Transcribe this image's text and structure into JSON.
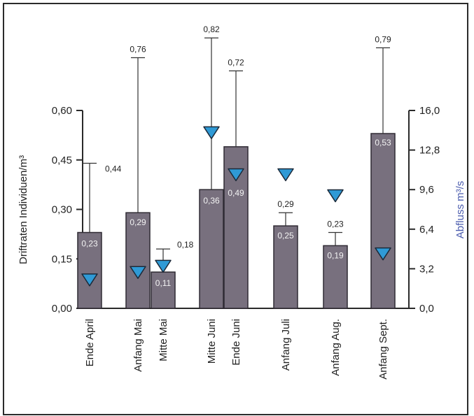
{
  "chart_data": {
    "type": "bar",
    "categories": [
      "Ende April",
      "Anfang Mai",
      "Mitte Mai",
      "Mitte Juni",
      "Ende Juni",
      "Anfang Juli",
      "Anfang Aug.",
      "Anfang Sept."
    ],
    "series": [
      {
        "name": "",
        "values": [
          0.23,
          0.29,
          0.11,
          0.36,
          0.49,
          0.25,
          0.19,
          0.53
        ],
        "value_labels": [
          "0,23",
          "0,29",
          "0,11",
          "0,36",
          "0,49",
          "0,25",
          "0,19",
          "0,53"
        ],
        "error_upper": [
          0.44,
          0.76,
          0.18,
          0.82,
          0.72,
          0.29,
          0.23,
          0.79
        ],
        "error_labels": [
          "0,44",
          "0,76",
          "0,18",
          "0,82",
          "0,72",
          "0,29",
          "0,23",
          "0,79"
        ]
      }
    ],
    "secondary_series": {
      "marker": "triangle-down",
      "values": [
        2.3,
        2.9,
        3.4,
        14.2,
        10.8,
        10.8,
        9.1,
        4.4
      ]
    },
    "ylabel": "Driftraten Individuen/m³",
    "y2label": "Abfluss m³/s",
    "ylim": [
      0,
      0.6
    ],
    "y2lim": [
      0,
      16
    ],
    "yticks": [
      "0,00",
      "0,15",
      "0,30",
      "0,45",
      "0,60"
    ],
    "y2ticks": [
      "0,0",
      "3,2",
      "6,4",
      "9,6",
      "12,8",
      "16,0"
    ],
    "grid": false,
    "colors": {
      "bar": "#78707e",
      "bar_stroke": "#2f2a33",
      "marker": "#2f9ad6",
      "marker_stroke": "#1b2a3a",
      "axis": "#2a2a2a",
      "y2label": "#4b5cae",
      "value_label": "#f3f3f3"
    }
  }
}
